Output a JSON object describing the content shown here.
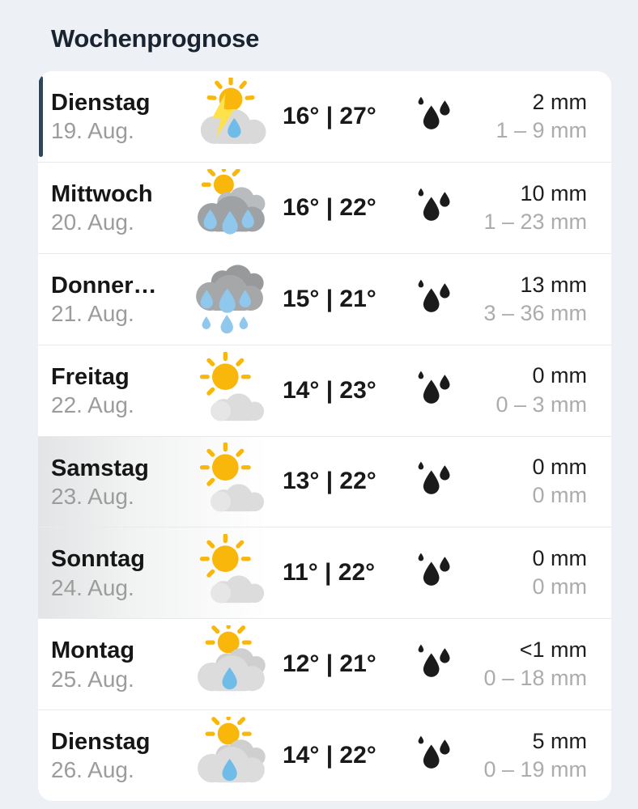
{
  "header": {
    "title": "Wochenprognose"
  },
  "colors": {
    "page_bg": "#edf0f4",
    "card_bg": "#ffffff",
    "title_text": "#1a2330",
    "day_text": "#161616",
    "date_text": "#9c9c9c",
    "temp_text": "#191919",
    "precip_text": "#1e1e1e",
    "precip_range_text": "#acacac",
    "divider": "#e8eaeb",
    "selected_indicator": "#32465a",
    "weekend_tint": "#e2e4e5",
    "sun": "#f9b70b",
    "lightning": "#ffe14a",
    "cloud_light": "#dcdcdc",
    "cloud_dark": "#9ea2a5",
    "rain_drop": "#8fc7ed",
    "drizzle_drop": "#6fbce9",
    "precip_icon": "#1b1b1b"
  },
  "forecast": {
    "rows": [
      {
        "day": "Dienstag",
        "date": "19. Aug.",
        "icon": "sun-behind-storm-cloud",
        "temp": "16° | 27°",
        "precip": "2 mm",
        "precip_range": "1 – 9 mm",
        "selected": true,
        "weekend": false
      },
      {
        "day": "Mittwoch",
        "date": "20. Aug.",
        "icon": "sun-behind-rain-cloud",
        "temp": "16° | 22°",
        "precip": "10 mm",
        "precip_range": "1 – 23 mm",
        "selected": false,
        "weekend": false
      },
      {
        "day": "Donner…",
        "date": "21. Aug.",
        "icon": "rain-cloud",
        "temp": "15° | 21°",
        "precip": "13 mm",
        "precip_range": "3 – 36 mm",
        "selected": false,
        "weekend": false
      },
      {
        "day": "Freitag",
        "date": "22. Aug.",
        "icon": "sun-with-small-cloud",
        "temp": "14° | 23°",
        "precip": "0 mm",
        "precip_range": "0 – 3 mm",
        "selected": false,
        "weekend": false
      },
      {
        "day": "Samstag",
        "date": "23. Aug.",
        "icon": "sun-with-small-cloud",
        "temp": "13° | 22°",
        "precip": "0 mm",
        "precip_range": "0 mm",
        "selected": false,
        "weekend": true
      },
      {
        "day": "Sonntag",
        "date": "24. Aug.",
        "icon": "sun-with-small-cloud",
        "temp": "11° | 22°",
        "precip": "0 mm",
        "precip_range": "0 mm",
        "selected": false,
        "weekend": true
      },
      {
        "day": "Montag",
        "date": "25. Aug.",
        "icon": "sun-behind-drizzle-cloud",
        "temp": "12° | 21°",
        "precip": "<1 mm",
        "precip_range": "0 – 18 mm",
        "selected": false,
        "weekend": false
      },
      {
        "day": "Dienstag",
        "date": "26. Aug.",
        "icon": "sun-behind-drizzle-cloud",
        "temp": "14° | 22°",
        "precip": "5 mm",
        "precip_range": "0 – 19 mm",
        "selected": false,
        "weekend": false
      }
    ]
  }
}
